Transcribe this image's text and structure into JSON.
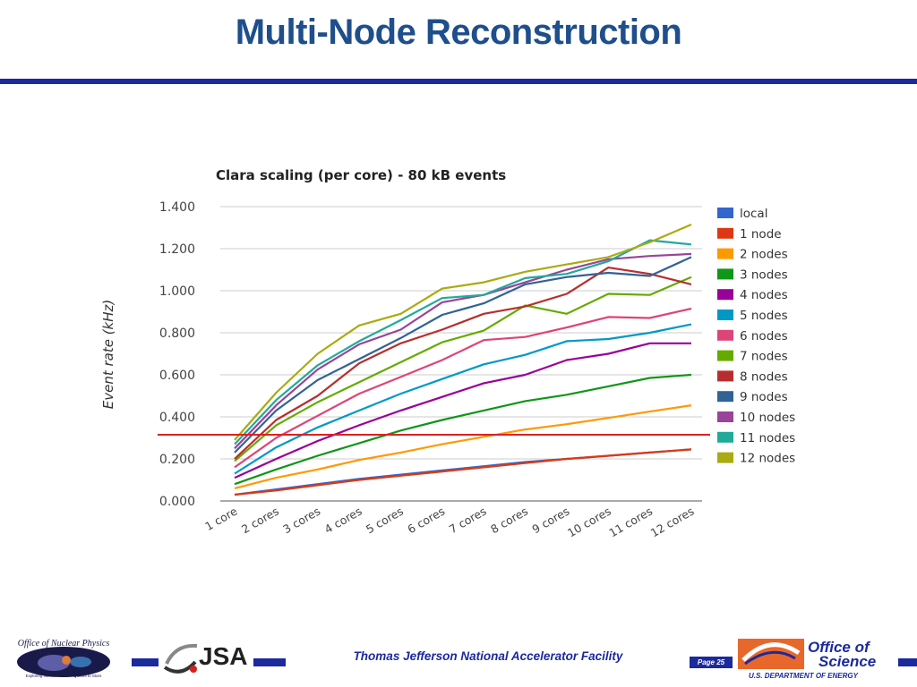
{
  "slide": {
    "title": "Multi-Node Reconstruction"
  },
  "footer": {
    "facility": "Thomas Jefferson National Accelerator Facility",
    "page_prefix": "Page",
    "page_number": "25",
    "logo_nuclear_physics_text": "Office of Nuclear Physics",
    "logo_nuclear_physics_tagline": "Exploring Nuclear Matter - Quarks to Stars",
    "logo_jsa_text": "JSA",
    "logo_science_line1": "Office of",
    "logo_science_line2": "Science",
    "logo_science_line3": "U.S. DEPARTMENT OF ENERGY",
    "bar_color": "#1b2a9c"
  },
  "chart_data": {
    "type": "line",
    "title": "Clara scaling (per core) - 80 kB events",
    "xlabel": "",
    "ylabel": "Event rate (kHz)",
    "ylim": [
      0,
      1.4
    ],
    "yticks": [
      "0.000",
      "0.200",
      "0.400",
      "0.600",
      "0.800",
      "1.000",
      "1.200",
      "1.400"
    ],
    "grid": true,
    "legend_position": "right",
    "categories": [
      "1 core",
      "2 cores",
      "3 cores",
      "4 cores",
      "5 cores",
      "6 cores",
      "7 cores",
      "8 cores",
      "9 cores",
      "10 cores",
      "11 cores",
      "12 cores"
    ],
    "reference_line": {
      "value": 0.315,
      "color": "#e02020"
    },
    "series": [
      {
        "name": "local",
        "color": "#3366cc",
        "values": [
          0.03,
          0.055,
          0.08,
          0.105,
          0.125,
          0.145,
          0.165,
          0.185,
          0.2,
          0.215,
          0.23,
          0.245
        ]
      },
      {
        "name": "1 node",
        "color": "#dc3912",
        "values": [
          0.03,
          0.05,
          0.075,
          0.1,
          0.12,
          0.14,
          0.16,
          0.18,
          0.2,
          0.215,
          0.23,
          0.245
        ]
      },
      {
        "name": "2 nodes",
        "color": "#ff9900",
        "values": [
          0.06,
          0.11,
          0.15,
          0.195,
          0.23,
          0.27,
          0.305,
          0.34,
          0.365,
          0.395,
          0.425,
          0.455
        ]
      },
      {
        "name": "3 nodes",
        "color": "#109618",
        "values": [
          0.08,
          0.15,
          0.215,
          0.275,
          0.335,
          0.385,
          0.43,
          0.475,
          0.505,
          0.545,
          0.585,
          0.6
        ]
      },
      {
        "name": "4 nodes",
        "color": "#990099",
        "values": [
          0.11,
          0.2,
          0.285,
          0.36,
          0.43,
          0.495,
          0.56,
          0.6,
          0.67,
          0.7,
          0.75,
          0.75
        ]
      },
      {
        "name": "5 nodes",
        "color": "#0099c6",
        "values": [
          0.13,
          0.255,
          0.35,
          0.43,
          0.51,
          0.58,
          0.65,
          0.695,
          0.76,
          0.77,
          0.8,
          0.84
        ]
      },
      {
        "name": "6 nodes",
        "color": "#dd4477",
        "values": [
          0.16,
          0.3,
          0.405,
          0.51,
          0.59,
          0.67,
          0.765,
          0.78,
          0.825,
          0.875,
          0.87,
          0.915
        ]
      },
      {
        "name": "7 nodes",
        "color": "#66aa00",
        "values": [
          0.19,
          0.36,
          0.47,
          0.565,
          0.66,
          0.755,
          0.81,
          0.93,
          0.89,
          0.985,
          0.98,
          1.065
        ]
      },
      {
        "name": "8 nodes",
        "color": "#b82e2e",
        "values": [
          0.2,
          0.385,
          0.5,
          0.655,
          0.75,
          0.815,
          0.89,
          0.925,
          0.985,
          1.11,
          1.08,
          1.03
        ]
      },
      {
        "name": "9 nodes",
        "color": "#316395",
        "values": [
          0.23,
          0.43,
          0.575,
          0.675,
          0.775,
          0.885,
          0.94,
          1.03,
          1.065,
          1.085,
          1.07,
          1.16
        ]
      },
      {
        "name": "10 nodes",
        "color": "#994499",
        "values": [
          0.25,
          0.455,
          0.625,
          0.745,
          0.815,
          0.945,
          0.98,
          1.04,
          1.1,
          1.15,
          1.165,
          1.175
        ]
      },
      {
        "name": "11 nodes",
        "color": "#22aa99",
        "values": [
          0.27,
          0.48,
          0.645,
          0.76,
          0.86,
          0.965,
          0.98,
          1.06,
          1.08,
          1.14,
          1.24,
          1.22
        ]
      },
      {
        "name": "12 nodes",
        "color": "#aaaa11",
        "values": [
          0.29,
          0.515,
          0.7,
          0.835,
          0.89,
          1.01,
          1.04,
          1.09,
          1.125,
          1.16,
          1.23,
          1.315
        ]
      }
    ]
  }
}
